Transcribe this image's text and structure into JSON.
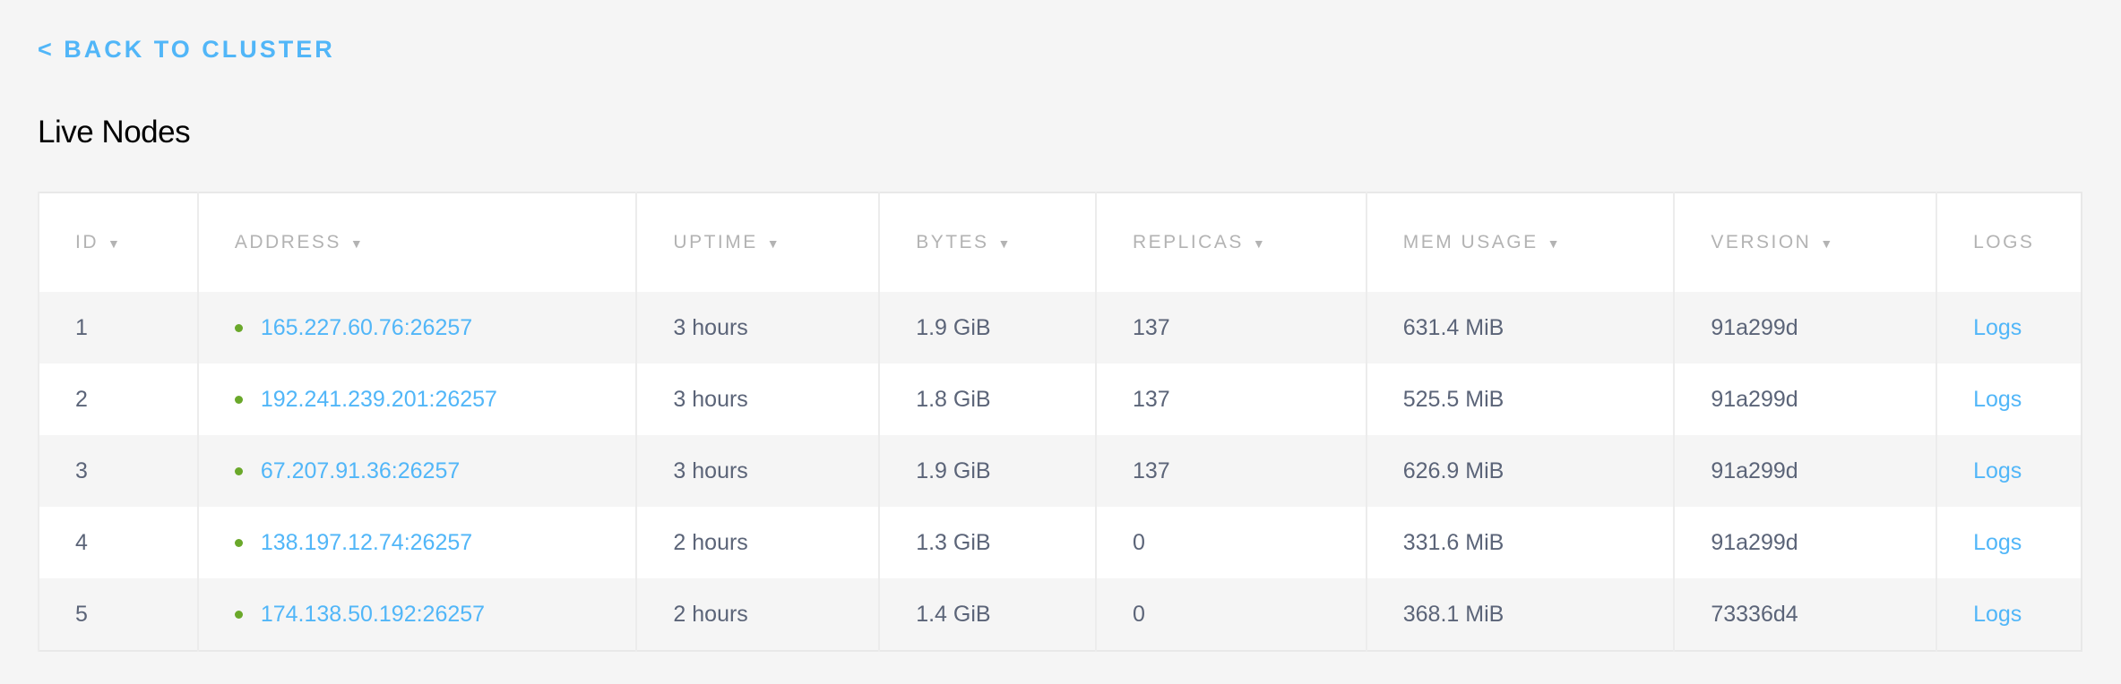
{
  "nav": {
    "back_label": "< BACK TO CLUSTER"
  },
  "page_title": "Live Nodes",
  "colors": {
    "accent": "#51b6f8",
    "status_live": "#6aa82a",
    "text": "#5b6478",
    "header_text": "#b3b3b3",
    "background": "#f5f5f5"
  },
  "table": {
    "columns": [
      {
        "label": "ID",
        "sortable": true
      },
      {
        "label": "ADDRESS",
        "sortable": true
      },
      {
        "label": "UPTIME",
        "sortable": true
      },
      {
        "label": "BYTES",
        "sortable": true
      },
      {
        "label": "REPLICAS",
        "sortable": true
      },
      {
        "label": "MEM USAGE",
        "sortable": true
      },
      {
        "label": "VERSION",
        "sortable": true
      },
      {
        "label": "LOGS",
        "sortable": false
      }
    ],
    "sort_icon": "▼",
    "rows": [
      {
        "id": "1",
        "address": "165.227.60.76:26257",
        "uptime": "3 hours",
        "bytes": "1.9 GiB",
        "replicas": "137",
        "mem": "631.4 MiB",
        "version": "91a299d",
        "logs": "Logs"
      },
      {
        "id": "2",
        "address": "192.241.239.201:26257",
        "uptime": "3 hours",
        "bytes": "1.8 GiB",
        "replicas": "137",
        "mem": "525.5 MiB",
        "version": "91a299d",
        "logs": "Logs"
      },
      {
        "id": "3",
        "address": "67.207.91.36:26257",
        "uptime": "3 hours",
        "bytes": "1.9 GiB",
        "replicas": "137",
        "mem": "626.9 MiB",
        "version": "91a299d",
        "logs": "Logs"
      },
      {
        "id": "4",
        "address": "138.197.12.74:26257",
        "uptime": "2 hours",
        "bytes": "1.3 GiB",
        "replicas": "0",
        "mem": "331.6 MiB",
        "version": "91a299d",
        "logs": "Logs"
      },
      {
        "id": "5",
        "address": "174.138.50.192:26257",
        "uptime": "2 hours",
        "bytes": "1.4 GiB",
        "replicas": "0",
        "mem": "368.1 MiB",
        "version": "73336d4",
        "logs": "Logs"
      }
    ]
  }
}
